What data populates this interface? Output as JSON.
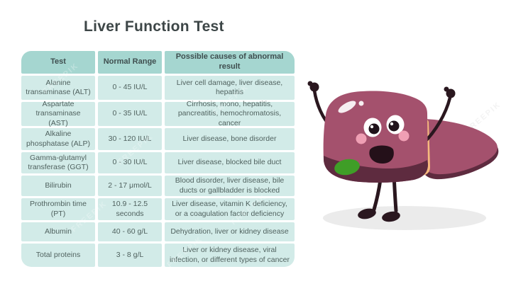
{
  "title": "Liver Function Test",
  "table": {
    "headers": [
      "Test",
      "Normal Range",
      "Possible causes of abnormal result"
    ],
    "rows": [
      {
        "test": "Alanine transaminase (ALT)",
        "range": "0 - 45 IU/L",
        "causes": "Liver cell damage, liver disease, hepatitis"
      },
      {
        "test": "Aspartate transaminase (AST)",
        "range": "0 - 35 IU/L",
        "causes": "Cirrhosis, mono, hepatitis, pancreatitis, hemochromatosis, cancer"
      },
      {
        "test": "Alkaline phosphatase (ALP)",
        "range": "30 - 120 IU/L",
        "causes": "Liver disease, bone disorder"
      },
      {
        "test": "Gamma-glutamyl transferase (GGT)",
        "range": "0 - 30 IU/L",
        "causes": "Liver disease, blocked bile duct"
      },
      {
        "test": "Bilirubin",
        "range": "2 - 17 μmol/L",
        "causes": "Blood disorder, liver disease, bile ducts or gallbladder is blocked"
      },
      {
        "test": "Prothrombin time (PT)",
        "range": "10.9 - 12.5 seconds",
        "causes": "Liver disease, vitamin K deficiency, or a coagulation factor deficiency"
      },
      {
        "test": "Albumin",
        "range": "40 - 60 g/L",
        "causes": "Dehydration, liver or kidney disease"
      },
      {
        "test": "Total proteins",
        "range": "3 - 8 g/L",
        "causes": "Liver or kidney disease, viral infection, or different types of cancer"
      }
    ]
  },
  "watermark": {
    "text": "FREEPIK"
  },
  "illustration": {
    "name": "happy-liver-cartoon"
  },
  "colors": {
    "title_text": "#3d4647",
    "table_header": "#a5d6d0",
    "table_row": "#d2ebe8",
    "liver": "#a4516d",
    "liver_dark": "#5e2b3f",
    "ligament_orange": "#f6ba7e",
    "gallbladder_green": "#3f9e27",
    "limbs": "#2a171f",
    "cheek": "#ef9fb4",
    "mouth": "#241019",
    "shadow": "#ebebeb",
    "shine": "#ffffff"
  }
}
